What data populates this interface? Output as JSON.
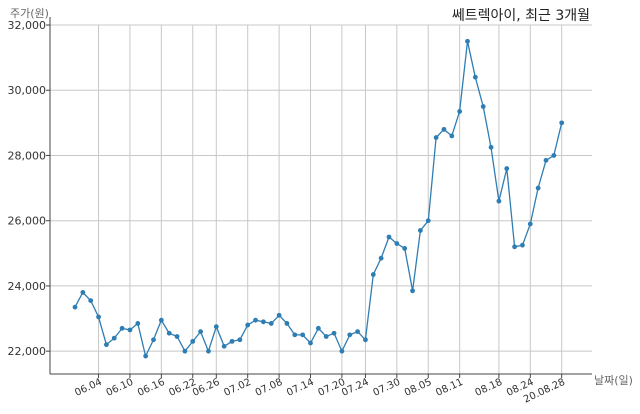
{
  "chart_data": {
    "type": "line",
    "title": "쎄트렉아이, 최근 3개월",
    "xlabel": "날짜(일)",
    "ylabel": "주가(원)",
    "ylim": [
      21300,
      32000
    ],
    "yticks": [
      22000,
      24000,
      26000,
      28000,
      30000,
      32000
    ],
    "ytick_labels": [
      "22,000",
      "24,000",
      "26,000",
      "28,000",
      "30,000",
      "32,000"
    ],
    "xtick_labels": [
      "06.04",
      "06.10",
      "06.16",
      "06.22",
      "06.26",
      "07.02",
      "07.08",
      "07.14",
      "07.20",
      "07.24",
      "07.30",
      "08.05",
      "08.11",
      "08.18",
      "08.24",
      "20.08.28"
    ],
    "xtick_index": [
      3,
      7,
      11,
      15,
      18,
      22,
      26,
      30,
      34,
      37,
      41,
      45,
      49,
      54,
      58,
      62
    ],
    "grid": true,
    "color": "#2e7db3",
    "series": [
      {
        "values": [
          23350,
          23800,
          23550,
          23050,
          22200,
          22400,
          22700,
          22650,
          22850,
          21850,
          22350,
          22950,
          22550,
          22450,
          22000,
          22300,
          22600,
          22000,
          22750,
          22150,
          22300,
          22350,
          22800,
          22950,
          22900,
          22850,
          23100,
          22850,
          22500,
          22500,
          22250,
          22700,
          22450,
          22550,
          22000,
          22500,
          22600,
          22350,
          24350,
          24850,
          25500,
          25300,
          25150,
          23850,
          25700,
          26000,
          28550,
          28800,
          28600,
          29350,
          31500,
          30400,
          29500,
          28250,
          26600,
          27600,
          25200,
          25250,
          25900,
          27000,
          27850,
          28000,
          29000
        ]
      }
    ]
  }
}
